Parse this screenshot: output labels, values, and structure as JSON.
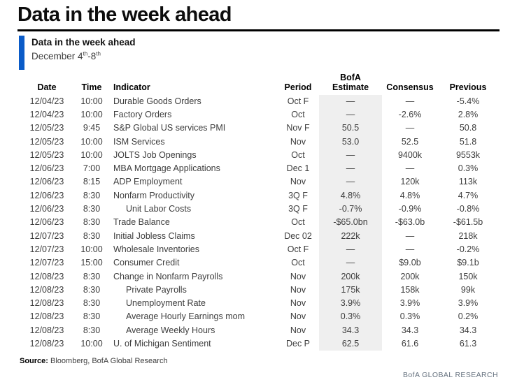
{
  "page": {
    "title": "Data in the week ahead"
  },
  "panel": {
    "heading": "Data in the week ahead",
    "range_pre": "December 4",
    "range_sup1": "th",
    "range_mid": "-8",
    "range_sup2": "th"
  },
  "table": {
    "headers": {
      "date": "Date",
      "time": "Time",
      "indicator": "Indicator",
      "period": "Period",
      "estimate_line1": "BofA",
      "estimate_line2": "Estimate",
      "consensus": "Consensus",
      "previous": "Previous"
    },
    "rows": [
      {
        "date": "12/04/23",
        "time": "10:00",
        "indicator": "Durable Goods Orders",
        "indent": false,
        "period": "Oct F",
        "estimate": "—",
        "consensus": "—",
        "previous": "-5.4%"
      },
      {
        "date": "12/04/23",
        "time": "10:00",
        "indicator": "Factory Orders",
        "indent": false,
        "period": "Oct",
        "estimate": "—",
        "consensus": "-2.6%",
        "previous": "2.8%"
      },
      {
        "date": "12/05/23",
        "time": "9:45",
        "indicator": "S&P Global US services PMI",
        "indent": false,
        "period": "Nov F",
        "estimate": "50.5",
        "consensus": "—",
        "previous": "50.8"
      },
      {
        "date": "12/05/23",
        "time": "10:00",
        "indicator": "ISM Services",
        "indent": false,
        "period": "Nov",
        "estimate": "53.0",
        "consensus": "52.5",
        "previous": "51.8"
      },
      {
        "date": "12/05/23",
        "time": "10:00",
        "indicator": "JOLTS Job Openings",
        "indent": false,
        "period": "Oct",
        "estimate": "—",
        "consensus": "9400k",
        "previous": "9553k"
      },
      {
        "date": "12/06/23",
        "time": "7:00",
        "indicator": "MBA Mortgage Applications",
        "indent": false,
        "period": "Dec 1",
        "estimate": "—",
        "consensus": "—",
        "previous": "0.3%"
      },
      {
        "date": "12/06/23",
        "time": "8:15",
        "indicator": "ADP Employment",
        "indent": false,
        "period": "Nov",
        "estimate": "—",
        "consensus": "120k",
        "previous": "113k"
      },
      {
        "date": "12/06/23",
        "time": "8:30",
        "indicator": "Nonfarm Productivity",
        "indent": false,
        "period": "3Q F",
        "estimate": "4.8%",
        "consensus": "4.8%",
        "previous": "4.7%"
      },
      {
        "date": "12/06/23",
        "time": "8:30",
        "indicator": "Unit Labor Costs",
        "indent": true,
        "period": "3Q F",
        "estimate": "-0.7%",
        "consensus": "-0.9%",
        "previous": "-0.8%"
      },
      {
        "date": "12/06/23",
        "time": "8:30",
        "indicator": "Trade Balance",
        "indent": false,
        "period": "Oct",
        "estimate": "-$65.0bn",
        "consensus": "-$63.0b",
        "previous": "-$61.5b"
      },
      {
        "date": "12/07/23",
        "time": "8:30",
        "indicator": "Initial Jobless Claims",
        "indent": false,
        "period": "Dec 02",
        "estimate": "222k",
        "consensus": "—",
        "previous": "218k"
      },
      {
        "date": "12/07/23",
        "time": "10:00",
        "indicator": "Wholesale Inventories",
        "indent": false,
        "period": "Oct F",
        "estimate": "—",
        "consensus": "—",
        "previous": "-0.2%"
      },
      {
        "date": "12/07/23",
        "time": "15:00",
        "indicator": "Consumer Credit",
        "indent": false,
        "period": "Oct",
        "estimate": "—",
        "consensus": "$9.0b",
        "previous": "$9.1b"
      },
      {
        "date": "12/08/23",
        "time": "8:30",
        "indicator": "Change in Nonfarm Payrolls",
        "indent": false,
        "period": "Nov",
        "estimate": "200k",
        "consensus": "200k",
        "previous": "150k"
      },
      {
        "date": "12/08/23",
        "time": "8:30",
        "indicator": "Private Payrolls",
        "indent": true,
        "period": "Nov",
        "estimate": "175k",
        "consensus": "158k",
        "previous": "99k"
      },
      {
        "date": "12/08/23",
        "time": "8:30",
        "indicator": "Unemployment Rate",
        "indent": true,
        "period": "Nov",
        "estimate": "3.9%",
        "consensus": "3.9%",
        "previous": "3.9%"
      },
      {
        "date": "12/08/23",
        "time": "8:30",
        "indicator": "Average Hourly Earnings mom",
        "indent": true,
        "period": "Nov",
        "estimate": "0.3%",
        "consensus": "0.3%",
        "previous": "0.2%"
      },
      {
        "date": "12/08/23",
        "time": "8:30",
        "indicator": "Average Weekly Hours",
        "indent": true,
        "period": "Nov",
        "estimate": "34.3",
        "consensus": "34.3",
        "previous": "34.3"
      },
      {
        "date": "12/08/23",
        "time": "10:00",
        "indicator": "U. of Michigan Sentiment",
        "indent": false,
        "period": "Dec P",
        "estimate": "62.5",
        "consensus": "61.6",
        "previous": "61.3"
      }
    ]
  },
  "footer": {
    "source_label": "Source:",
    "source_text": " Bloomberg, BofA Global Research",
    "brand": "BofA GLOBAL RESEARCH"
  },
  "colors": {
    "accent_blue": "#0a5bc8",
    "estimate_shade": "#efefef",
    "brand_gray": "#66727f"
  }
}
